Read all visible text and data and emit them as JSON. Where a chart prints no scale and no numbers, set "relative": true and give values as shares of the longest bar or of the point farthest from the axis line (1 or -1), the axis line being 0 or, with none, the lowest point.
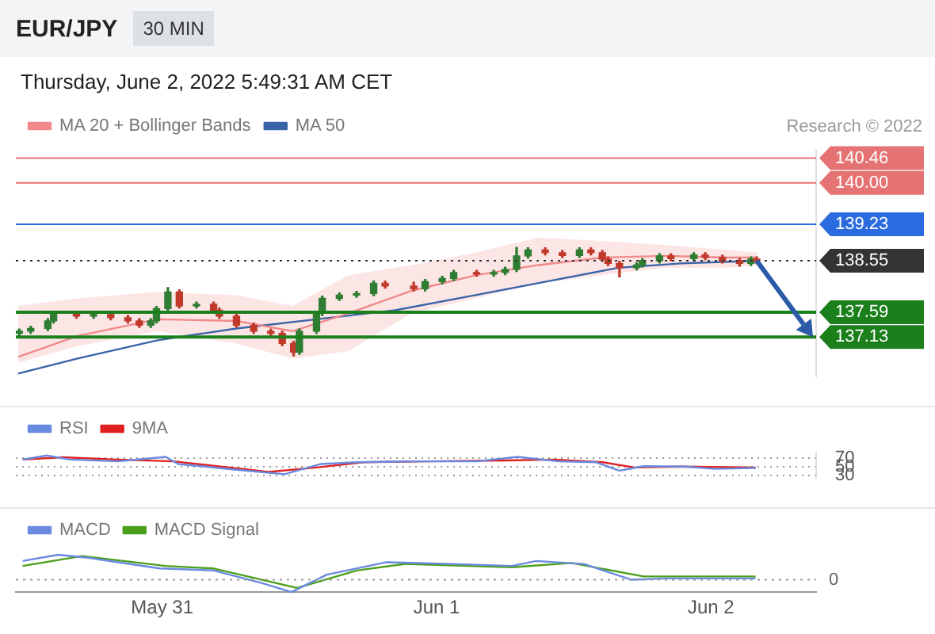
{
  "chart_data": [
    {
      "type": "candlestick",
      "title": "EUR/JPY",
      "subtitle": "30 MIN",
      "annotations": [
        "Thursday, June 2, 2022 5:49:31 AM CET",
        "Research © 2022"
      ],
      "x": [
        "2022-05-30T11:30",
        "2022-05-30T12:30",
        "2022-05-30T14:00",
        "2022-05-30T14:30",
        "2022-05-30T16:30",
        "2022-05-30T18:00",
        "2022-05-30T19:30",
        "2022-05-30T21:00",
        "2022-05-30T22:00",
        "2022-05-30T23:00",
        "2022-05-30T23:30",
        "2022-05-31T00:30",
        "2022-05-31T01:30",
        "2022-05-31T03:00",
        "2022-05-31T04:30",
        "2022-05-31T05:00",
        "2022-05-31T06:30",
        "2022-05-31T08:00",
        "2022-05-31T09:30",
        "2022-05-31T10:30",
        "2022-05-31T11:30",
        "2022-05-31T12:00",
        "2022-05-31T13:30",
        "2022-05-31T14:00",
        "2022-05-31T15:30",
        "2022-05-31T17:00",
        "2022-05-31T18:30",
        "2022-05-31T19:30",
        "2022-05-31T22:00",
        "2022-05-31T23:00",
        "2022-06-01T00:30",
        "2022-06-01T01:30",
        "2022-06-01T03:30",
        "2022-06-01T05:00",
        "2022-06-01T06:00",
        "2022-06-01T07:00",
        "2022-06-01T08:00",
        "2022-06-01T09:30",
        "2022-06-01T11:00",
        "2022-06-01T12:30",
        "2022-06-01T13:30",
        "2022-06-01T14:30",
        "2022-06-01T15:00",
        "2022-06-01T16:00",
        "2022-06-01T17:30",
        "2022-06-01T18:00",
        "2022-06-01T19:30",
        "2022-06-01T20:30",
        "2022-06-01T22:30",
        "2022-06-01T23:30",
        "2022-06-02T01:00",
        "2022-06-02T02:30",
        "2022-06-02T03:30",
        "2022-06-02T04:00"
      ],
      "ohlc": [
        [
          137.2,
          137.28,
          137.16,
          137.24
        ],
        [
          137.24,
          137.33,
          137.2,
          137.29
        ],
        [
          137.29,
          137.47,
          137.25,
          137.43
        ],
        [
          137.43,
          137.61,
          137.39,
          137.57
        ],
        [
          137.57,
          137.61,
          137.48,
          137.52
        ],
        [
          137.52,
          137.59,
          137.48,
          137.55
        ],
        [
          137.55,
          137.59,
          137.45,
          137.49
        ],
        [
          137.49,
          137.53,
          137.39,
          137.43
        ],
        [
          137.43,
          137.47,
          137.31,
          137.35
        ],
        [
          137.35,
          137.47,
          137.31,
          137.43
        ],
        [
          137.43,
          137.7,
          137.39,
          137.66
        ],
        [
          137.66,
          138.05,
          137.62,
          137.97
        ],
        [
          137.97,
          138.01,
          137.67,
          137.71
        ],
        [
          137.71,
          137.78,
          137.67,
          137.74
        ],
        [
          137.74,
          137.78,
          137.59,
          137.63
        ],
        [
          137.63,
          137.67,
          137.48,
          137.52
        ],
        [
          137.52,
          137.56,
          137.31,
          137.35
        ],
        [
          137.35,
          137.39,
          137.2,
          137.24
        ],
        [
          137.24,
          137.28,
          137.16,
          137.2
        ],
        [
          137.2,
          137.24,
          136.97,
          137.01
        ],
        [
          137.01,
          137.05,
          136.78,
          136.85
        ],
        [
          136.85,
          137.28,
          136.81,
          137.24
        ],
        [
          137.24,
          137.61,
          137.2,
          137.57
        ],
        [
          137.57,
          137.89,
          137.53,
          137.85
        ],
        [
          137.85,
          137.95,
          137.81,
          137.91
        ],
        [
          137.91,
          137.98,
          137.87,
          137.94
        ],
        [
          137.94,
          138.17,
          137.9,
          138.13
        ],
        [
          138.13,
          138.17,
          138.04,
          138.08
        ],
        [
          138.08,
          138.15,
          137.99,
          138.03
        ],
        [
          138.03,
          138.2,
          137.99,
          138.16
        ],
        [
          138.16,
          138.26,
          138.12,
          138.22
        ],
        [
          138.22,
          138.37,
          138.18,
          138.33
        ],
        [
          138.33,
          138.37,
          138.26,
          138.3
        ],
        [
          138.3,
          138.37,
          138.26,
          138.33
        ],
        [
          138.33,
          138.43,
          138.29,
          138.39
        ],
        [
          138.39,
          138.8,
          138.35,
          138.64
        ],
        [
          138.64,
          138.79,
          138.6,
          138.75
        ],
        [
          138.75,
          138.79,
          138.66,
          138.7
        ],
        [
          138.7,
          138.74,
          138.61,
          138.65
        ],
        [
          138.65,
          138.79,
          138.61,
          138.75
        ],
        [
          138.75,
          138.79,
          138.66,
          138.7
        ],
        [
          138.7,
          138.74,
          138.54,
          138.58
        ],
        [
          138.58,
          138.62,
          138.46,
          138.5
        ],
        [
          138.5,
          138.54,
          138.25,
          138.42
        ],
        [
          138.42,
          138.51,
          138.38,
          138.47
        ],
        [
          138.47,
          138.59,
          138.43,
          138.55
        ],
        [
          138.55,
          138.68,
          138.51,
          138.64
        ],
        [
          138.64,
          138.68,
          138.55,
          138.59
        ],
        [
          138.59,
          138.7,
          138.55,
          138.66
        ],
        [
          138.66,
          138.7,
          138.57,
          138.61
        ],
        [
          138.61,
          138.65,
          138.51,
          138.55
        ],
        [
          138.55,
          138.59,
          138.45,
          138.5
        ],
        [
          138.5,
          138.62,
          138.46,
          138.58
        ],
        [
          138.58,
          138.62,
          138.51,
          138.55
        ]
      ],
      "series": [
        {
          "name": "MA 20 + Bollinger Bands",
          "type": "line",
          "color": "#f08a8a",
          "x": [
            "2022-05-30T11:24",
            "2022-05-30T16:36",
            "2022-05-30T23:36",
            "2022-05-31T06:30",
            "2022-05-31T11:24",
            "2022-05-31T16:18",
            "2022-05-31T21:48",
            "2022-06-01T03:24",
            "2022-06-01T08:54",
            "2022-06-01T14:30",
            "2022-06-01T20:00",
            "2022-06-02T01:36",
            "2022-06-02T04:06"
          ],
          "values": [
            136.76,
            137.15,
            137.46,
            137.43,
            137.24,
            137.57,
            137.99,
            138.28,
            138.47,
            138.61,
            138.64,
            138.61,
            138.61
          ],
          "upper": [
            137.71,
            137.85,
            137.97,
            137.91,
            137.71,
            138.28,
            138.47,
            138.7,
            138.98,
            138.92,
            138.84,
            138.75,
            138.7
          ],
          "lower": [
            136.65,
            136.96,
            137.24,
            137.01,
            136.73,
            136.87,
            137.57,
            137.85,
            138.13,
            138.28,
            138.42,
            138.42,
            138.47
          ]
        },
        {
          "name": "MA 50",
          "type": "line",
          "color": "#3a64a8",
          "x": [
            "2022-05-30T11:24",
            "2022-05-30T16:36",
            "2022-05-30T23:36",
            "2022-05-31T06:30",
            "2022-05-31T13:30",
            "2022-05-31T20:24",
            "2022-06-01T03:24",
            "2022-06-01T10:18",
            "2022-06-01T15:54",
            "2022-06-01T21:24",
            "2022-06-02T04:06"
          ],
          "values": [
            136.45,
            136.73,
            137.07,
            137.29,
            137.46,
            137.63,
            137.91,
            138.19,
            138.42,
            138.5,
            138.55
          ]
        }
      ],
      "xlim": [
        "2022-05-30T11:12",
        "2022-06-02T09:12"
      ],
      "ylim": [
        136.4,
        140.6
      ],
      "yticks": [
        140.46,
        {
          "value": 140,
          "label": "140.00"
        },
        139.23,
        138.55,
        137.59,
        137.13
      ],
      "legend": "top left",
      "tick_labels": "y",
      "ref_lines": [
        {
          "axis": "y",
          "value": 140.46,
          "color": "#e57373"
        },
        {
          "axis": "y",
          "value": 140.0,
          "color": "#e57373"
        },
        {
          "axis": "y",
          "value": 139.23,
          "color": "#2b6be0"
        },
        {
          "axis": "y",
          "value": 138.55,
          "color": "#333333",
          "line_style": "dotted"
        },
        {
          "axis": "y",
          "value": 137.59,
          "color": "#1b7f1b"
        },
        {
          "axis": "y",
          "value": 137.13,
          "color": "#1b7f1b"
        }
      ]
    },
    {
      "type": "line",
      "series": [
        {
          "name": "RSI",
          "color": "#6a8ae0",
          "x": [
            "2022-05-30T11:48",
            "2022-05-30T13:54",
            "2022-05-30T15:54",
            "2022-05-30T20:06",
            "2022-05-31T00:18",
            "2022-05-31T01:24",
            "2022-05-31T06:30",
            "2022-05-31T10:42",
            "2022-05-31T13:54",
            "2022-05-31T17:06",
            "2022-05-31T22:12",
            "2022-06-01T03:30",
            "2022-06-01T07:06",
            "2022-06-01T10:42",
            "2022-06-01T13:54",
            "2022-06-01T16:00",
            "2022-06-01T18:06",
            "2022-06-01T21:42",
            "2022-06-02T00:18",
            "2022-06-02T03:54"
          ],
          "values": [
            66,
            75,
            66,
            62,
            72,
            56,
            43,
            33,
            56,
            60,
            62,
            62,
            72,
            62,
            60,
            41,
            51,
            50,
            45,
            47
          ]
        },
        {
          "name": "9MA",
          "color": "#e02020",
          "x": [
            "2022-05-30T11:48",
            "2022-05-30T15:18",
            "2022-05-30T20:06",
            "2022-05-31T01:00",
            "2022-05-31T05:06",
            "2022-05-31T09:18",
            "2022-05-31T13:30",
            "2022-05-31T17:36",
            "2022-05-31T23:12",
            "2022-06-01T06:06",
            "2022-06-01T10:18",
            "2022-06-01T14:30",
            "2022-06-01T17:18",
            "2022-06-01T21:24",
            "2022-06-02T03:54"
          ],
          "values": [
            66,
            71,
            66,
            62,
            50,
            38,
            48,
            60,
            62,
            64,
            66,
            60,
            48,
            50,
            48
          ]
        }
      ],
      "xlim": [
        "2022-05-30T11:12",
        "2022-06-02T09:12"
      ],
      "ylim": [
        25,
        80
      ],
      "yticks": [
        70,
        50,
        30
      ],
      "grid": "y",
      "legend": "top left",
      "tick_labels": "y"
    },
    {
      "type": "line",
      "relative": true,
      "series": [
        {
          "name": "MACD",
          "color": "#6a8ae0",
          "x": [
            "2022-05-30T11:48",
            "2022-05-30T14:54",
            "2022-05-30T17:30",
            "2022-05-30T23:48",
            "2022-05-31T04:30",
            "2022-05-31T08:42",
            "2022-05-31T11:18",
            "2022-05-31T14:24",
            "2022-05-31T19:36",
            "2022-06-01T01:24",
            "2022-06-01T06:36",
            "2022-06-01T08:42",
            "2022-06-01T12:54",
            "2022-06-01T17:00",
            "2022-06-01T20:12",
            "2022-06-01T22:18",
            "2022-06-02T03:54"
          ],
          "values": [
            0.75,
            1,
            0.88,
            0.45,
            0.37,
            -0.13,
            -0.5,
            0.2,
            0.7,
            0.63,
            0.55,
            0.75,
            0.63,
            0,
            0.05,
            0.05,
            0.05
          ]
        },
        {
          "name": "MACD Signal",
          "color": "#4a9f1a",
          "x": [
            "2022-05-30T11:48",
            "2022-05-30T17:00",
            "2022-05-31T00:18",
            "2022-05-31T04:30",
            "2022-05-31T11:48",
            "2022-05-31T17:00",
            "2022-05-31T21:12",
            "2022-06-01T06:36",
            "2022-06-01T11:48",
            "2022-06-01T18:06",
            "2022-06-01T22:18",
            "2022-06-02T03:54"
          ],
          "values": [
            0.55,
            0.95,
            0.55,
            0.45,
            -0.33,
            0.37,
            0.63,
            0.5,
            0.67,
            0.13,
            0.13,
            0.13
          ]
        }
      ],
      "xlim": [
        "2022-05-30T11:12",
        "2022-06-02T09:12"
      ],
      "xticks": [
        {
          "value": "2022-05-31",
          "label": "May 31"
        },
        {
          "value": "2022-06-01",
          "label": "Jun 1"
        },
        {
          "value": "2022-06-02",
          "label": "Jun 2"
        }
      ],
      "legend": "top left",
      "tick_labels": "x",
      "ref_lines": [
        {
          "axis": "y",
          "value": 0,
          "label": "0",
          "line_style": "dotted"
        }
      ]
    }
  ]
}
